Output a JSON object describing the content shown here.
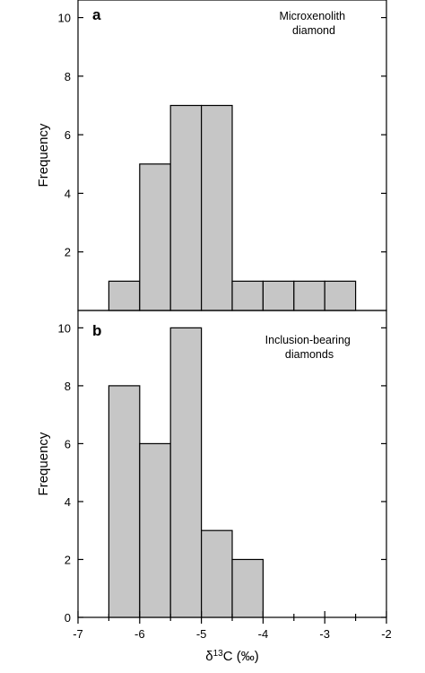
{
  "chart_data": [
    {
      "type": "bar",
      "panel_label": "a",
      "title": [
        "Microxenolith",
        "diamond"
      ],
      "xlabel": "",
      "ylabel": "Frequency",
      "ylim": [
        0,
        10.6
      ],
      "yticks": [
        2,
        4,
        6,
        8,
        10
      ],
      "xlim": [
        -7,
        -2
      ],
      "bins": [
        {
          "x0": -6.5,
          "x1": -6.0,
          "value": 1
        },
        {
          "x0": -6.0,
          "x1": -5.5,
          "value": 5
        },
        {
          "x0": -5.5,
          "x1": -5.0,
          "value": 7
        },
        {
          "x0": -5.0,
          "x1": -4.5,
          "value": 7
        },
        {
          "x0": -4.5,
          "x1": -4.0,
          "value": 1
        },
        {
          "x0": -4.0,
          "x1": -3.5,
          "value": 1
        },
        {
          "x0": -3.5,
          "x1": -3.0,
          "value": 1
        },
        {
          "x0": -3.0,
          "x1": -2.5,
          "value": 1
        }
      ],
      "grid": false,
      "bar_color": "#c6c6c6"
    },
    {
      "type": "bar",
      "panel_label": "b",
      "title": [
        "Inclusion-bearing",
        "diamonds"
      ],
      "xlabel": "δ13C (‰)",
      "ylabel": "Frequency",
      "ylim": [
        0,
        10.6
      ],
      "yticks": [
        0,
        2,
        4,
        6,
        8,
        10
      ],
      "xlim": [
        -7,
        -2
      ],
      "xticks": [
        -7,
        -6,
        -5,
        -4,
        -3,
        -2
      ],
      "bins": [
        {
          "x0": -6.5,
          "x1": -6.0,
          "value": 8
        },
        {
          "x0": -6.0,
          "x1": -5.5,
          "value": 6
        },
        {
          "x0": -5.5,
          "x1": -5.0,
          "value": 10
        },
        {
          "x0": -5.0,
          "x1": -4.5,
          "value": 3
        },
        {
          "x0": -4.5,
          "x1": -4.0,
          "value": 2
        }
      ],
      "grid": false,
      "bar_color": "#c6c6c6"
    }
  ],
  "xaxis_title": {
    "base": "δ",
    "sup": "13",
    "rest": "C (‰)"
  }
}
